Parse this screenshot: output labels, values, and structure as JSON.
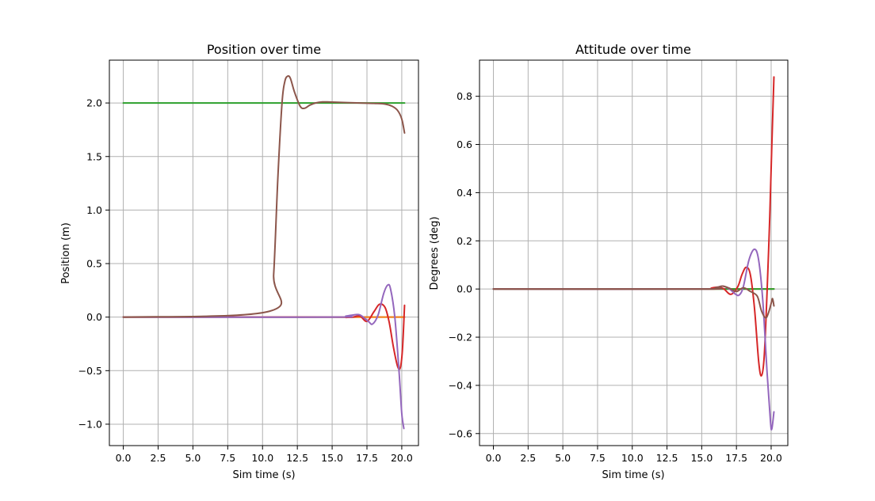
{
  "chart_data": [
    {
      "type": "line",
      "title": "Position over time",
      "xlabel": "Sim time (s)",
      "ylabel": "Position (m)",
      "xlim": [
        -1.0,
        21.2
      ],
      "ylim": [
        -1.2,
        2.4
      ],
      "xticks": [
        0,
        2.5,
        5,
        7.5,
        10,
        12.5,
        15,
        17.5,
        20
      ],
      "xtick_labels": [
        "0.0",
        "2.5",
        "5.0",
        "7.5",
        "10.0",
        "12.5",
        "15.0",
        "17.5",
        "20.0"
      ],
      "yticks": [
        -1.0,
        -0.5,
        0.0,
        0.5,
        1.0,
        1.5,
        2.0
      ],
      "ytick_labels": [
        "−1.0",
        "−0.5",
        "0.0",
        "0.5",
        "1.0",
        "1.5",
        "2.0"
      ],
      "grid": true,
      "series": [
        {
          "color": "#1f77b4",
          "points": [
            [
              0,
              0
            ],
            [
              15,
              0
            ],
            [
              20.2,
              0
            ]
          ]
        },
        {
          "color": "#ff7f0e",
          "points": [
            [
              0,
              0
            ],
            [
              15,
              0
            ],
            [
              17,
              0
            ],
            [
              18,
              0
            ],
            [
              19,
              0
            ],
            [
              20.2,
              0
            ]
          ]
        },
        {
          "color": "#2ca02c",
          "points": [
            [
              0,
              2
            ],
            [
              20.2,
              2
            ]
          ]
        },
        {
          "color": "#d62728",
          "points": [
            [
              0,
              0
            ],
            [
              15,
              0
            ],
            [
              16,
              -0.003
            ],
            [
              16.5,
              0
            ],
            [
              17,
              0.01
            ],
            [
              17.5,
              -0.04
            ],
            [
              18,
              0.05
            ],
            [
              18.4,
              0.12
            ],
            [
              18.8,
              0.09
            ],
            [
              19.1,
              -0.05
            ],
            [
              19.4,
              -0.28
            ],
            [
              19.7,
              -0.46
            ],
            [
              19.9,
              -0.47
            ],
            [
              20.05,
              -0.3
            ],
            [
              20.2,
              0.11
            ]
          ]
        },
        {
          "color": "#9467bd",
          "points": [
            [
              0,
              0
            ],
            [
              15,
              0
            ],
            [
              16,
              0.01
            ],
            [
              16.5,
              0.02
            ],
            [
              17,
              0.02
            ],
            [
              17.6,
              -0.04
            ],
            [
              17.9,
              -0.065
            ],
            [
              18.3,
              0.02
            ],
            [
              18.7,
              0.22
            ],
            [
              19.0,
              0.3
            ],
            [
              19.2,
              0.26
            ],
            [
              19.5,
              0.0
            ],
            [
              19.8,
              -0.5
            ],
            [
              20.0,
              -0.9
            ],
            [
              20.15,
              -1.04
            ]
          ]
        },
        {
          "color": "#8c564b",
          "points": [
            [
              0,
              0
            ],
            [
              10.5,
              0.055
            ],
            [
              10.8,
              0.4
            ],
            [
              11.1,
              1.3
            ],
            [
              11.4,
              2.0
            ],
            [
              11.6,
              2.2
            ],
            [
              11.8,
              2.25
            ],
            [
              12.0,
              2.23
            ],
            [
              12.3,
              2.1
            ],
            [
              12.7,
              1.97
            ],
            [
              13.0,
              1.95
            ],
            [
              13.4,
              1.98
            ],
            [
              13.8,
              2.0
            ],
            [
              14.3,
              2.01
            ],
            [
              15,
              2.008
            ],
            [
              17,
              2.0
            ],
            [
              18,
              1.996
            ],
            [
              18.8,
              1.99
            ],
            [
              19.3,
              1.97
            ],
            [
              19.7,
              1.93
            ],
            [
              20.0,
              1.85
            ],
            [
              20.2,
              1.72
            ]
          ]
        }
      ]
    },
    {
      "type": "line",
      "title": "Attitude over time",
      "xlabel": "Sim time (s)",
      "ylabel": "Degrees (deg)",
      "xlim": [
        -1.0,
        21.2
      ],
      "ylim": [
        -0.65,
        0.95
      ],
      "xticks": [
        0,
        2.5,
        5,
        7.5,
        10,
        12.5,
        15,
        17.5,
        20
      ],
      "xtick_labels": [
        "0.0",
        "2.5",
        "5.0",
        "7.5",
        "10.0",
        "12.5",
        "15.0",
        "17.5",
        "20.0"
      ],
      "yticks": [
        -0.6,
        -0.4,
        -0.2,
        0.0,
        0.2,
        0.4,
        0.6,
        0.8
      ],
      "ytick_labels": [
        "−0.6",
        "−0.4",
        "−0.2",
        "0.0",
        "0.2",
        "0.4",
        "0.6",
        "0.8"
      ],
      "grid": true,
      "series": [
        {
          "color": "#1f77b4",
          "points": [
            [
              0,
              0
            ],
            [
              20.2,
              0
            ]
          ]
        },
        {
          "color": "#ff7f0e",
          "points": [
            [
              0,
              0
            ],
            [
              20.2,
              0
            ]
          ]
        },
        {
          "color": "#2ca02c",
          "points": [
            [
              0,
              0
            ],
            [
              20.2,
              0
            ]
          ]
        },
        {
          "color": "#d62728",
          "points": [
            [
              0,
              0
            ],
            [
              15,
              0
            ],
            [
              15.7,
              0.004
            ],
            [
              16.2,
              0.008
            ],
            [
              16.6,
              0
            ],
            [
              17.1,
              -0.022
            ],
            [
              17.6,
              0.01
            ],
            [
              17.9,
              0.06
            ],
            [
              18.2,
              0.09
            ],
            [
              18.5,
              0.06
            ],
            [
              18.8,
              -0.08
            ],
            [
              19.1,
              -0.3
            ],
            [
              19.3,
              -0.36
            ],
            [
              19.5,
              -0.28
            ],
            [
              19.7,
              -0.02
            ],
            [
              19.9,
              0.3
            ],
            [
              20.05,
              0.6
            ],
            [
              20.2,
              0.88
            ]
          ]
        },
        {
          "color": "#9467bd",
          "points": [
            [
              0,
              0
            ],
            [
              15,
              0
            ],
            [
              16,
              0.005
            ],
            [
              16.5,
              0.012
            ],
            [
              17,
              0.0
            ],
            [
              17.4,
              -0.02
            ],
            [
              17.7,
              -0.025
            ],
            [
              18.0,
              0.01
            ],
            [
              18.4,
              0.12
            ],
            [
              18.8,
              0.165
            ],
            [
              19.1,
              0.12
            ],
            [
              19.4,
              -0.05
            ],
            [
              19.7,
              -0.34
            ],
            [
              19.95,
              -0.55
            ],
            [
              20.05,
              -0.58
            ],
            [
              20.2,
              -0.51
            ]
          ]
        },
        {
          "color": "#8c564b",
          "points": [
            [
              0,
              0
            ],
            [
              15,
              0
            ],
            [
              16.0,
              0.005
            ],
            [
              16.5,
              0.012
            ],
            [
              17.0,
              0.003
            ],
            [
              17.5,
              -0.01
            ],
            [
              18.0,
              0.005
            ],
            [
              18.5,
              -0.01
            ],
            [
              19.0,
              -0.03
            ],
            [
              19.3,
              -0.09
            ],
            [
              19.6,
              -0.12
            ],
            [
              19.8,
              -0.1
            ],
            [
              20.0,
              -0.06
            ],
            [
              20.1,
              -0.04
            ],
            [
              20.2,
              -0.07
            ]
          ]
        }
      ]
    }
  ]
}
